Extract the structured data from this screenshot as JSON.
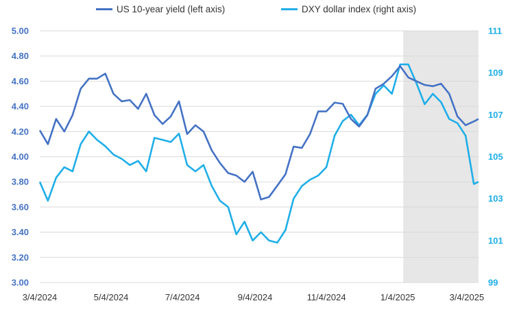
{
  "chart_data": {
    "type": "line",
    "title": "",
    "x": [
      "3/4/2024",
      "3/11/2024",
      "3/18/2024",
      "3/25/2024",
      "4/1/2024",
      "4/8/2024",
      "4/15/2024",
      "4/22/2024",
      "4/29/2024",
      "5/6/2024",
      "5/13/2024",
      "5/20/2024",
      "5/27/2024",
      "6/3/2024",
      "6/10/2024",
      "6/17/2024",
      "6/24/2024",
      "7/1/2024",
      "7/8/2024",
      "7/15/2024",
      "7/22/2024",
      "7/29/2024",
      "8/5/2024",
      "8/12/2024",
      "8/19/2024",
      "8/26/2024",
      "9/2/2024",
      "9/9/2024",
      "9/16/2024",
      "9/23/2024",
      "9/30/2024",
      "10/7/2024",
      "10/14/2024",
      "10/21/2024",
      "10/28/2024",
      "11/4/2024",
      "11/11/2024",
      "11/18/2024",
      "11/25/2024",
      "12/2/2024",
      "12/9/2024",
      "12/16/2024",
      "12/23/2024",
      "12/30/2024",
      "1/6/2025",
      "1/13/2025",
      "1/20/2025",
      "1/27/2025",
      "2/3/2025",
      "2/10/2025",
      "2/17/2025",
      "2/24/2025",
      "3/3/2025",
      "3/10/2025",
      "3/14/2025"
    ],
    "x_ticks": [
      "3/4/2024",
      "5/4/2024",
      "7/4/2024",
      "9/4/2024",
      "11/4/2024",
      "1/4/2025",
      "3/4/2025"
    ],
    "shaded_region": {
      "start": "1/4/2025",
      "end": "3/14/2025",
      "color": "#E7E7E7"
    },
    "series": [
      {
        "name": "US 10-year yield (left axis)",
        "axis": "left",
        "color": "#4472C4",
        "values": [
          4.21,
          4.1,
          4.3,
          4.2,
          4.33,
          4.54,
          4.62,
          4.62,
          4.66,
          4.5,
          4.44,
          4.45,
          4.38,
          4.5,
          4.33,
          4.26,
          4.32,
          4.44,
          4.18,
          4.25,
          4.2,
          4.05,
          3.95,
          3.87,
          3.85,
          3.8,
          3.88,
          3.66,
          3.68,
          3.77,
          3.86,
          4.08,
          4.07,
          4.18,
          4.36,
          4.36,
          4.43,
          4.42,
          4.3,
          4.24,
          4.33,
          4.54,
          4.58,
          4.64,
          4.72,
          4.63,
          4.6,
          4.57,
          4.56,
          4.58,
          4.5,
          4.32,
          4.25,
          4.28,
          4.3
        ]
      },
      {
        "name": "DXY dollar index (right axis)",
        "axis": "right",
        "color": "#1FAEE8",
        "values": [
          103.8,
          102.9,
          104.0,
          104.5,
          104.3,
          105.6,
          106.2,
          105.8,
          105.5,
          105.1,
          104.9,
          104.6,
          104.8,
          104.3,
          105.9,
          105.8,
          105.7,
          106.1,
          104.6,
          104.3,
          104.6,
          103.6,
          102.9,
          102.6,
          101.3,
          101.9,
          101.0,
          101.4,
          101.0,
          100.9,
          101.5,
          103.0,
          103.6,
          103.9,
          104.1,
          104.5,
          106.0,
          106.7,
          107.0,
          106.5,
          107.0,
          108.0,
          108.4,
          108.0,
          109.4,
          109.4,
          108.5,
          107.5,
          108.0,
          107.6,
          106.8,
          106.6,
          106.0,
          103.7,
          103.8
        ]
      }
    ],
    "left_axis": {
      "ylim": [
        3.0,
        5.0
      ],
      "ticks": [
        "3.00",
        "3.20",
        "3.40",
        "3.60",
        "3.80",
        "4.00",
        "4.20",
        "4.40",
        "4.60",
        "4.80",
        "5.00"
      ],
      "color": "#4472C4"
    },
    "right_axis": {
      "ylim": [
        99,
        111
      ],
      "ticks": [
        "99",
        "101",
        "103",
        "105",
        "107",
        "109",
        "111"
      ],
      "color": "#1FAEE8"
    },
    "grid": true,
    "legend": "top"
  }
}
